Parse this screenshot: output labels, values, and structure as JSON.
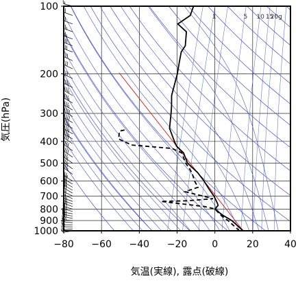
{
  "chart_data": {
    "type": "line",
    "title": "",
    "xlabel": "気温(実線), 露点(破線)",
    "ylabel": "気圧(hPa)",
    "x_axis": {
      "scale": "linear",
      "range": [
        -80,
        40
      ],
      "ticks": [
        "−80",
        "−60",
        "−40",
        "−20",
        "0",
        "20",
        "40"
      ],
      "tick_values": [
        -80,
        -60,
        -40,
        -20,
        0,
        20,
        40
      ]
    },
    "y_axis": {
      "scale": "log",
      "range": [
        1000,
        100
      ],
      "ticks": [
        "100",
        "200",
        "300",
        "400",
        "500",
        "600",
        "700",
        "800",
        "900",
        "1000"
      ],
      "tick_values": [
        100,
        200,
        300,
        400,
        500,
        600,
        700,
        800,
        900,
        1000
      ]
    },
    "grid": true,
    "mixing_ratio_labels": [
      "1",
      "5",
      "10",
      "15",
      "20g"
    ],
    "mixing_ratio_values": [
      1,
      5,
      10,
      15,
      20
    ],
    "colors": {
      "temperature": "#000000",
      "dewpoint": "#000000",
      "reference_line": "#e02020",
      "adiabats": "#3c50dc",
      "grid": "#000000"
    },
    "series": [
      {
        "style": "solid",
        "points": [
          [
            15,
            1000
          ],
          [
            7,
            900
          ],
          [
            1,
            850
          ],
          [
            -4,
            800
          ],
          [
            -3,
            770
          ],
          [
            -4,
            750
          ],
          [
            -7,
            700
          ],
          [
            -11,
            650
          ],
          [
            -15,
            600
          ],
          [
            -20,
            550
          ],
          [
            -27,
            500
          ],
          [
            -31,
            450
          ],
          [
            -36,
            420
          ],
          [
            -38,
            400
          ],
          [
            -43,
            350
          ],
          [
            -45,
            300
          ],
          [
            -46,
            280
          ],
          [
            -48,
            250
          ],
          [
            -49,
            200
          ],
          [
            -50,
            180
          ],
          [
            -51,
            160
          ],
          [
            -50,
            150
          ],
          [
            -52,
            130
          ],
          [
            -58,
            120
          ],
          [
            -53,
            110
          ],
          [
            -53,
            100
          ]
        ]
      },
      {
        "style": "dashed",
        "points": [
          [
            13,
            1000
          ],
          [
            5,
            900
          ],
          [
            0,
            850
          ],
          [
            -4,
            800
          ],
          [
            -10,
            780
          ],
          [
            -34,
            740
          ],
          [
            -20,
            735
          ],
          [
            -7,
            720
          ],
          [
            -13,
            700
          ],
          [
            -23,
            670
          ],
          [
            -17,
            640
          ],
          [
            -20,
            600
          ],
          [
            -23,
            550
          ],
          [
            -28,
            500
          ],
          [
            -32,
            450
          ],
          [
            -38,
            430
          ],
          [
            -60,
            415
          ],
          [
            -68,
            390
          ],
          [
            -69,
            360
          ],
          [
            -66,
            355
          ]
        ]
      }
    ],
    "reference_line": {
      "points": [
        [
          15,
          1000
        ],
        [
          -80,
          198
        ]
      ]
    },
    "dry_adiabats_theta_K": [
      220,
      240,
      260,
      280,
      300,
      320,
      340,
      360,
      380,
      400,
      420,
      440,
      460,
      480,
      500,
      520,
      540,
      560,
      580,
      600,
      640,
      680
    ],
    "moist_adiabats_start_C": [
      -40,
      -35,
      -30,
      -25,
      -20,
      -15,
      -10,
      -5,
      0,
      5,
      10,
      15,
      20,
      25,
      30,
      35
    ],
    "mixing_ratio_lines_gkg": [
      0.5,
      1,
      2,
      5,
      10,
      15,
      20,
      30
    ],
    "wind_barbs": [
      {
        "p": 1000,
        "dir": 260,
        "spd": 10
      },
      {
        "p": 980,
        "dir": 265,
        "spd": 15
      },
      {
        "p": 960,
        "dir": 270,
        "spd": 20
      },
      {
        "p": 940,
        "dir": 270,
        "spd": 20
      },
      {
        "p": 920,
        "dir": 275,
        "spd": 20
      },
      {
        "p": 900,
        "dir": 275,
        "spd": 25
      },
      {
        "p": 880,
        "dir": 280,
        "spd": 25
      },
      {
        "p": 860,
        "dir": 280,
        "spd": 25
      },
      {
        "p": 840,
        "dir": 280,
        "spd": 25
      },
      {
        "p": 820,
        "dir": 285,
        "spd": 25
      },
      {
        "p": 800,
        "dir": 285,
        "spd": 30
      },
      {
        "p": 780,
        "dir": 290,
        "spd": 25
      },
      {
        "p": 760,
        "dir": 290,
        "spd": 25
      },
      {
        "p": 740,
        "dir": 290,
        "spd": 25
      },
      {
        "p": 720,
        "dir": 295,
        "spd": 20
      },
      {
        "p": 700,
        "dir": 295,
        "spd": 20
      },
      {
        "p": 680,
        "dir": 300,
        "spd": 20
      },
      {
        "p": 660,
        "dir": 300,
        "spd": 20
      },
      {
        "p": 640,
        "dir": 300,
        "spd": 20
      },
      {
        "p": 620,
        "dir": 300,
        "spd": 20
      },
      {
        "p": 600,
        "dir": 300,
        "spd": 25
      },
      {
        "p": 560,
        "dir": 305,
        "spd": 25
      },
      {
        "p": 530,
        "dir": 305,
        "spd": 25
      },
      {
        "p": 500,
        "dir": 305,
        "spd": 25
      },
      {
        "p": 470,
        "dir": 305,
        "spd": 30
      },
      {
        "p": 440,
        "dir": 305,
        "spd": 30
      },
      {
        "p": 410,
        "dir": 305,
        "spd": 30
      },
      {
        "p": 390,
        "dir": 300,
        "spd": 35
      },
      {
        "p": 370,
        "dir": 300,
        "spd": 35
      },
      {
        "p": 350,
        "dir": 300,
        "spd": 35
      },
      {
        "p": 330,
        "dir": 300,
        "spd": 40
      },
      {
        "p": 310,
        "dir": 300,
        "spd": 40
      },
      {
        "p": 290,
        "dir": 300,
        "spd": 35
      },
      {
        "p": 270,
        "dir": 300,
        "spd": 35
      },
      {
        "p": 250,
        "dir": 300,
        "spd": 35
      },
      {
        "p": 230,
        "dir": 295,
        "spd": 35
      },
      {
        "p": 210,
        "dir": 295,
        "spd": 30
      },
      {
        "p": 190,
        "dir": 295,
        "spd": 30
      },
      {
        "p": 175,
        "dir": 295,
        "spd": 30
      },
      {
        "p": 160,
        "dir": 290,
        "spd": 30
      },
      {
        "p": 150,
        "dir": 290,
        "spd": 30
      },
      {
        "p": 140,
        "dir": 290,
        "spd": 25
      },
      {
        "p": 130,
        "dir": 290,
        "spd": 25
      },
      {
        "p": 120,
        "dir": 290,
        "spd": 20
      },
      {
        "p": 110,
        "dir": 290,
        "spd": 20
      },
      {
        "p": 100,
        "dir": 285,
        "spd": 15
      }
    ]
  }
}
